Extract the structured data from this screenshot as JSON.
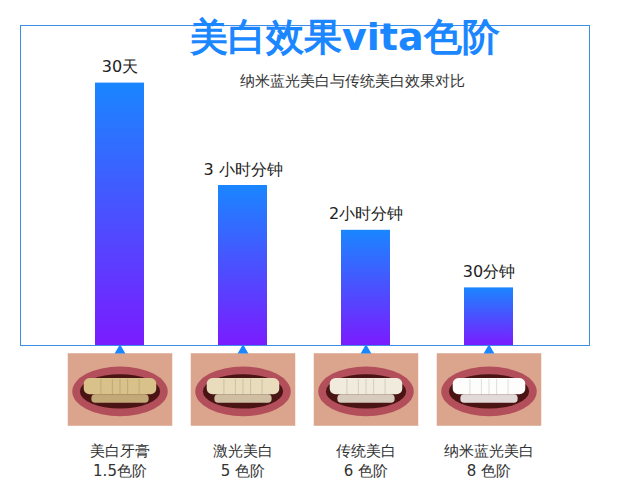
{
  "chart_data": {
    "type": "bar",
    "title": "美白效果vita色阶",
    "subtitle": "纳米蓝光美白与传统美白效果对比",
    "categories": [
      "美白牙膏",
      "激光美白",
      "传统美白",
      "纳米蓝光美白"
    ],
    "shade_labels": [
      "1.5色阶",
      "5 色阶",
      "6 色阶",
      "8 色阶"
    ],
    "bar_labels": [
      "30天",
      "3 小时分钟",
      "2小时分钟",
      "30分钟"
    ],
    "values": [
      82,
      50,
      36,
      18
    ],
    "ylim": [
      0,
      100
    ],
    "yticks": [],
    "tick_labels": false,
    "grid": false,
    "color": "#1a86ff"
  }
}
